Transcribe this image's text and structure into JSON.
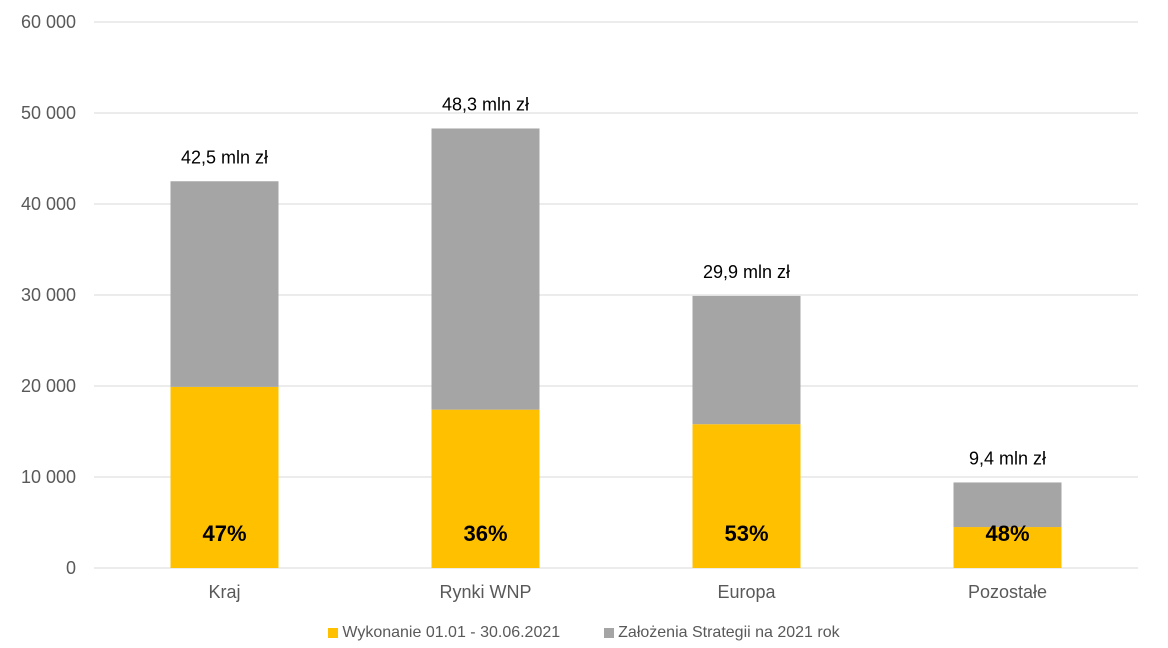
{
  "chart_data": {
    "type": "bar",
    "stacked": true,
    "categories": [
      "Kraj",
      "Rynki WNP",
      "Europa",
      "Pozostałe"
    ],
    "series": [
      {
        "name": "Wykonanie 01.01 - 30.06.2021",
        "color": "#FFC000",
        "values": [
          19900,
          17400,
          15800,
          4500
        ]
      },
      {
        "name": "Założenia Strategii na 2021 rok",
        "color": "#A5A5A5",
        "values": [
          22600,
          30900,
          14100,
          4900
        ]
      }
    ],
    "totals": [
      42500,
      48300,
      29900,
      9400
    ],
    "total_labels": [
      "42,5 mln zł",
      "48,3 mln zł",
      "29,9 mln zł",
      "9,4 mln zł"
    ],
    "percent_labels": [
      "47%",
      "36%",
      "53%",
      "48%"
    ],
    "ylim": [
      0,
      60000
    ],
    "yticks": [
      0,
      10000,
      20000,
      30000,
      40000,
      50000,
      60000
    ],
    "ytick_labels": [
      "0",
      "10 000",
      "20 000",
      "30 000",
      "40 000",
      "50 000",
      "60 000"
    ],
    "grid": true,
    "legend_position": "bottom"
  }
}
